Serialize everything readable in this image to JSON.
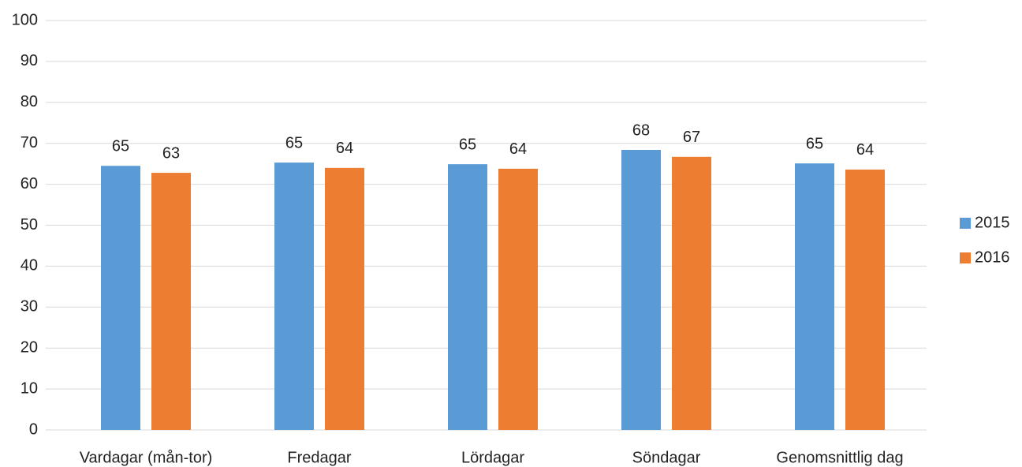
{
  "chart_data": {
    "type": "bar",
    "categories": [
      "Vardagar (mån-tor)",
      "Fredagar",
      "Lördagar",
      "Söndagar",
      "Genomsnittlig dag"
    ],
    "series": [
      {
        "name": "2015",
        "color": "#5b9bd5",
        "values": [
          64.5,
          65.3,
          64.9,
          68.4,
          65.1
        ],
        "value_labels": [
          "65",
          "65",
          "65",
          "68",
          "65"
        ]
      },
      {
        "name": "2016",
        "color": "#ed7d31",
        "values": [
          62.8,
          64.0,
          63.8,
          66.7,
          63.6
        ],
        "value_labels": [
          "63",
          "64",
          "64",
          "67",
          "64"
        ]
      }
    ],
    "ylim": [
      0,
      100
    ],
    "yticks": [
      0,
      10,
      20,
      30,
      40,
      50,
      60,
      70,
      80,
      90,
      100
    ],
    "grid": true,
    "legend": "right"
  }
}
